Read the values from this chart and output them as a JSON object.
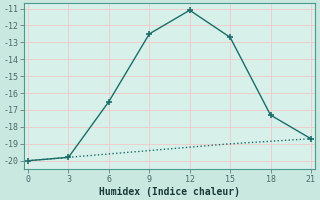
{
  "xlabel": "Humidex (Indice chaleur)",
  "ylabel": "",
  "background_color": "#c8e8e0",
  "plot_bg_color": "#d8f0ea",
  "grid_color": "#f0c8c8",
  "line_color": "#1a6e6a",
  "x_line1": [
    0,
    3,
    6,
    9,
    12,
    15,
    18,
    21
  ],
  "y_line1": [
    -20.0,
    -19.8,
    -16.5,
    -12.5,
    -11.1,
    -12.7,
    -17.3,
    -18.7
  ],
  "x_line2": [
    0,
    3,
    6,
    9,
    12,
    15,
    18,
    21
  ],
  "y_line2": [
    -20.0,
    -19.8,
    -19.6,
    -19.4,
    -19.2,
    -19.0,
    -18.85,
    -18.7
  ],
  "xlim": [
    -0.3,
    21.3
  ],
  "ylim": [
    -20.5,
    -10.7
  ],
  "xticks": [
    0,
    3,
    6,
    9,
    12,
    15,
    18,
    21
  ],
  "yticks": [
    -20,
    -19,
    -18,
    -17,
    -16,
    -15,
    -14,
    -13,
    -12,
    -11
  ],
  "ytick_labels": [
    "-20",
    "-19",
    "-18",
    "-17",
    "-16",
    "-15",
    "-14",
    "-13",
    "-12",
    "-11"
  ],
  "marker": "+",
  "marker_size": 4,
  "marker_edge_width": 1.2,
  "line_width": 1.0,
  "font_size_ticks": 6,
  "font_size_xlabel": 7,
  "spine_color": "#4a9a90"
}
